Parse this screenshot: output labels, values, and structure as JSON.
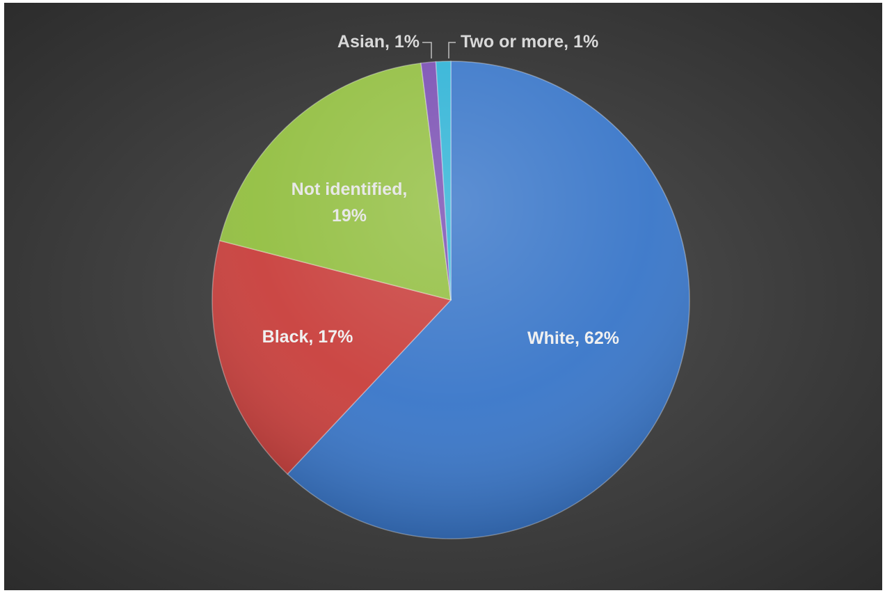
{
  "chart_data": {
    "type": "pie",
    "title": "",
    "slices": [
      {
        "label": "White",
        "value": 62,
        "display": "White, 62%",
        "color": "#3a77c9",
        "label_color": "#f0f0f0"
      },
      {
        "label": "Black",
        "value": 17,
        "display": "Black, 17%",
        "color": "#c9403d",
        "label_color": "#f0f0f0"
      },
      {
        "label": "Not identified",
        "value": 19,
        "display": "Not identified,|19%",
        "color": "#93bf42",
        "label_color": "#e8e8e8"
      },
      {
        "label": "Asian",
        "value": 1,
        "display": "Asian, 1%",
        "color": "#7a4fb3",
        "label_color": "#d9d9d9"
      },
      {
        "label": "Two or more",
        "value": 1,
        "display": "Two or more, 1%",
        "color": "#2fb3d6",
        "label_color": "#d9d9d9"
      }
    ],
    "legend": "none",
    "data_labels": "category, percent"
  }
}
